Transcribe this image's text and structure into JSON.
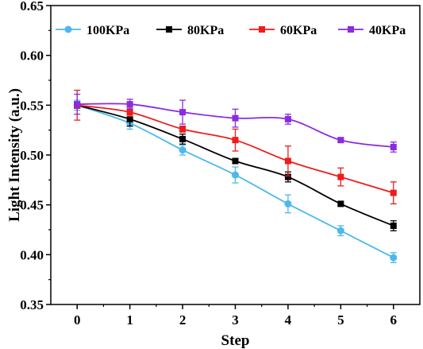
{
  "chart_data": {
    "type": "line",
    "xlabel": "Step",
    "ylabel": "Light Intensity (a.u.)",
    "x": [
      0,
      1,
      2,
      3,
      4,
      5,
      6
    ],
    "xlim": [
      -0.5,
      6.5
    ],
    "ylim": [
      0.35,
      0.65
    ],
    "x_ticks": [
      "0",
      "1",
      "2",
      "3",
      "4",
      "5",
      "6"
    ],
    "y_ticks": [
      "0.35",
      "0.40",
      "0.45",
      "0.50",
      "0.55",
      "0.60",
      "0.65"
    ],
    "legend_position": "top",
    "grid": false,
    "series": [
      {
        "name": "100KPa",
        "color": "#4db8ec",
        "marker": "circle",
        "values": [
          0.55,
          0.532,
          0.505,
          0.48,
          0.451,
          0.424,
          0.397
        ],
        "errors": [
          0.005,
          0.006,
          0.005,
          0.008,
          0.009,
          0.005,
          0.005
        ]
      },
      {
        "name": "80KPa",
        "color": "#000000",
        "marker": "square",
        "values": [
          0.55,
          0.536,
          0.516,
          0.494,
          0.478,
          0.451,
          0.429
        ],
        "errors": [
          0.003,
          0.007,
          0.005,
          0.002,
          0.005,
          0.002,
          0.005
        ]
      },
      {
        "name": "60KPa",
        "color": "#ee1c1c",
        "marker": "square",
        "values": [
          0.55,
          0.543,
          0.526,
          0.515,
          0.494,
          0.478,
          0.462
        ],
        "errors": [
          0.015,
          0.004,
          0.003,
          0.011,
          0.015,
          0.009,
          0.011
        ]
      },
      {
        "name": "40KPa",
        "color": "#8a2be2",
        "marker": "square",
        "values": [
          0.551,
          0.551,
          0.543,
          0.537,
          0.536,
          0.515,
          0.508
        ],
        "errors": [
          0.01,
          0.005,
          0.012,
          0.009,
          0.005,
          0.002,
          0.005
        ]
      }
    ]
  }
}
